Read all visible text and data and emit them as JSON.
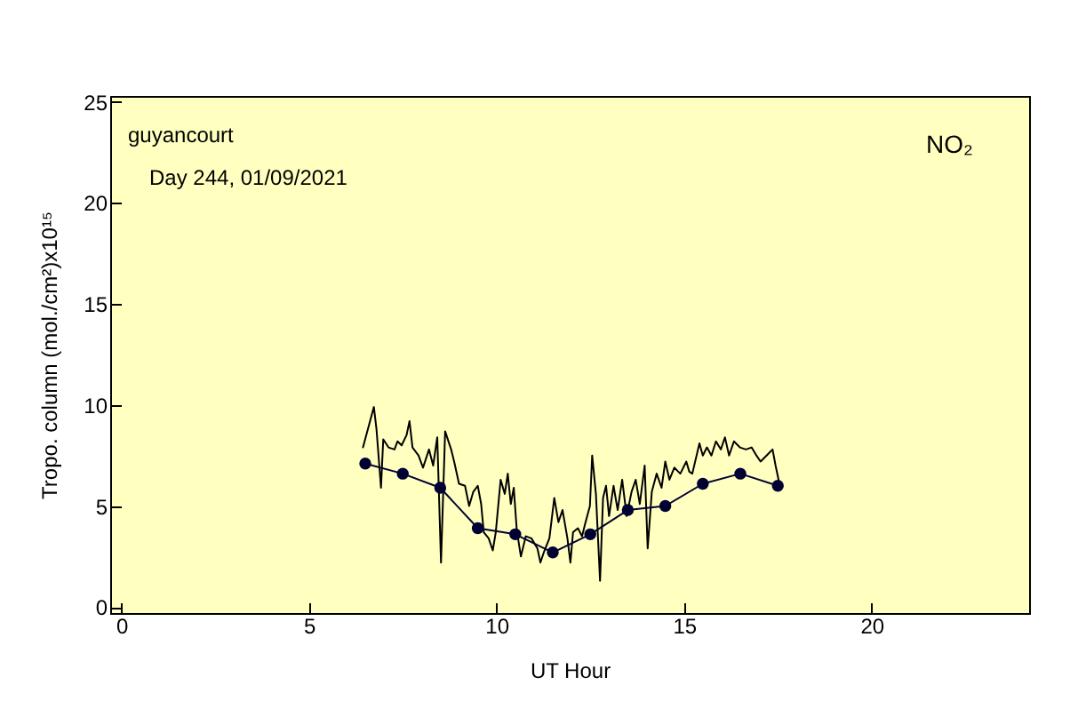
{
  "chart_data": {
    "type": "line",
    "xlabel": "UT Hour",
    "ylabel": "Tropo. column (mol./cm²)x10¹⁵",
    "annotations": [
      "guyancourt",
      "Day 244, 01/09/2021",
      "NO₂"
    ],
    "xlim": [
      -0.3,
      24.2
    ],
    "xticks": [
      0,
      5,
      10,
      15,
      20
    ],
    "ylim": [
      -0.3,
      25.3
    ],
    "yticks": [
      0,
      5,
      10,
      15,
      20,
      25
    ],
    "grid": false,
    "series": [
      {
        "color": "#000000",
        "marker": "none",
        "x": [
          6.44,
          6.73,
          6.8,
          6.92,
          6.98,
          7.12,
          7.28,
          7.36,
          7.47,
          7.6,
          7.68,
          7.76,
          7.92,
          8.04,
          8.2,
          8.31,
          8.42,
          8.52,
          8.63,
          8.79,
          8.87,
          9.0,
          9.16,
          9.27,
          9.38,
          9.5,
          9.59,
          9.66,
          9.79,
          9.9,
          9.98,
          10.11,
          10.22,
          10.3,
          10.38,
          10.46,
          10.54,
          10.65,
          10.78,
          10.93,
          11.09,
          11.17,
          11.28,
          11.41,
          11.54,
          11.65,
          11.76,
          11.89,
          11.97,
          12.04,
          12.17,
          12.28,
          12.36,
          12.49,
          12.55,
          12.65,
          12.76,
          12.84,
          12.92,
          13.0,
          13.12,
          13.23,
          13.35,
          13.47,
          13.6,
          13.71,
          13.82,
          13.95,
          14.03,
          14.14,
          14.27,
          14.4,
          14.5,
          14.61,
          14.74,
          14.9,
          15.06,
          15.14,
          15.22,
          15.41,
          15.5,
          15.61,
          15.73,
          15.85,
          15.98,
          16.09,
          16.2,
          16.33,
          16.49,
          16.65,
          16.8,
          16.93,
          17.04,
          17.2,
          17.36,
          17.44,
          17.52
        ],
        "values": [
          7.9,
          9.9,
          8.8,
          5.9,
          8.3,
          7.9,
          7.8,
          8.2,
          8.0,
          8.5,
          9.2,
          7.9,
          7.5,
          6.9,
          7.8,
          7.0,
          8.4,
          2.2,
          8.7,
          7.8,
          7.2,
          6.1,
          6.0,
          5.0,
          5.7,
          6.0,
          5.1,
          3.7,
          3.4,
          2.8,
          3.7,
          6.3,
          5.6,
          6.6,
          5.1,
          5.9,
          3.8,
          2.5,
          3.5,
          3.4,
          2.9,
          2.2,
          2.8,
          3.4,
          5.4,
          4.2,
          4.8,
          3.4,
          2.2,
          3.7,
          3.9,
          3.5,
          4.1,
          5.0,
          7.5,
          5.6,
          1.3,
          5.4,
          6.0,
          4.5,
          6.0,
          4.8,
          6.3,
          4.5,
          5.7,
          6.3,
          5.1,
          7.0,
          2.9,
          5.7,
          6.6,
          5.9,
          7.2,
          6.3,
          6.9,
          6.6,
          7.2,
          6.7,
          6.6,
          8.1,
          7.5,
          7.9,
          7.5,
          8.2,
          7.8,
          8.4,
          7.5,
          8.2,
          7.9,
          7.8,
          7.9,
          7.5,
          7.2,
          7.5,
          7.8,
          7.0,
          6.3
        ]
      },
      {
        "color": "#000033",
        "marker": "circle",
        "x": [
          6.5,
          7.5,
          8.5,
          9.5,
          10.5,
          11.5,
          12.5,
          13.5,
          14.5,
          15.5,
          16.5,
          17.5
        ],
        "values": [
          7.1,
          6.6,
          5.9,
          3.9,
          3.6,
          2.7,
          3.6,
          4.8,
          5.0,
          6.1,
          6.6,
          6.0
        ]
      }
    ]
  }
}
